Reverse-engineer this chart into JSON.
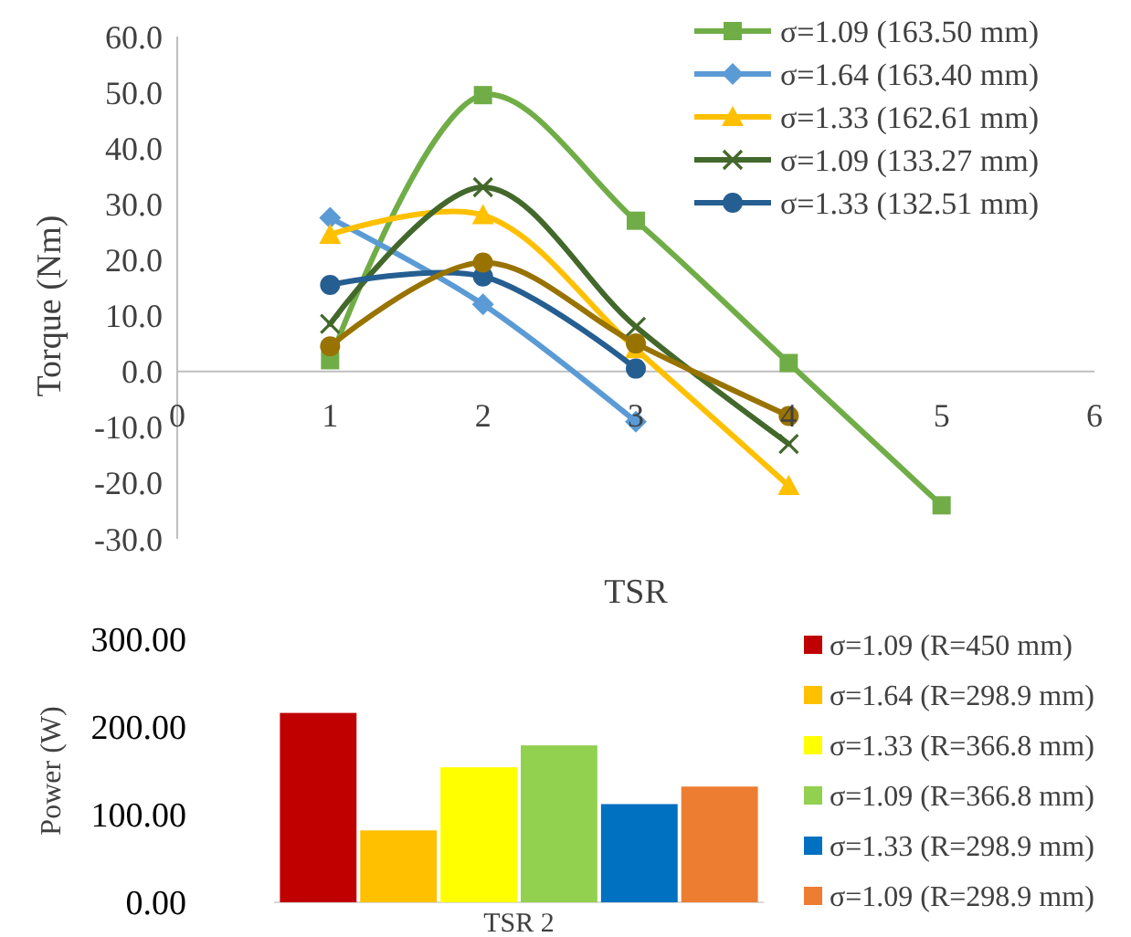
{
  "chart_data": [
    {
      "type": "line",
      "xlabel": "TSR",
      "ylabel": "Torque (Nm)",
      "xlim": [
        0,
        6
      ],
      "xticks": [
        0,
        1,
        2,
        3,
        4,
        5,
        6
      ],
      "ylim": [
        -30,
        60
      ],
      "yticks": [
        {
          "value": -30,
          "label": "-30.0"
        },
        {
          "value": -20,
          "label": "-20.0"
        },
        {
          "value": -10,
          "label": "-10.0"
        },
        {
          "value": 0,
          "label": "0.0"
        },
        {
          "value": 10,
          "label": "10.0"
        },
        {
          "value": 20,
          "label": "20.0"
        },
        {
          "value": 30,
          "label": "30.0"
        },
        {
          "value": 40,
          "label": "40.0"
        },
        {
          "value": 50,
          "label": "50.0"
        },
        {
          "value": 60,
          "label": "60.0"
        }
      ],
      "grid": false,
      "legend": "top right",
      "series": [
        {
          "name": "σ=1.09 (163.50 mm)",
          "color": "#70ad47",
          "marker": "square",
          "x": [
            1,
            2,
            3,
            4,
            5
          ],
          "values": [
            2,
            49.5,
            27,
            1.5,
            -24
          ]
        },
        {
          "name": "σ=1.64 (163.40 mm)",
          "color": "#5b9bd5",
          "marker": "diamond",
          "x": [
            1,
            2,
            3
          ],
          "values": [
            27.5,
            12,
            -9
          ]
        },
        {
          "name": "σ=1.33 (162.61 mm)",
          "color": "#ffc000",
          "marker": "triangle",
          "x": [
            1,
            2,
            3,
            4
          ],
          "values": [
            24.5,
            28,
            4,
            -20.5
          ]
        },
        {
          "name": "σ=1.09 (133.27 mm)",
          "color": "#43682b",
          "marker": "cross",
          "x": [
            1,
            2,
            3,
            4
          ],
          "values": [
            8.5,
            33,
            8,
            -13
          ]
        },
        {
          "name": "σ=1.33 (132.51 mm)",
          "color": "#255e91",
          "marker": "circle",
          "x": [
            1,
            2,
            3
          ],
          "values": [
            15.5,
            17,
            0.5
          ]
        },
        {
          "color": "#997300",
          "marker": "circle",
          "x": [
            1,
            2,
            3,
            4
          ],
          "values": [
            4.5,
            19.5,
            5,
            -8
          ]
        }
      ]
    },
    {
      "type": "bar",
      "ylabel": "Power (W)",
      "xlabel": "TSR 2",
      "categories": [
        null,
        null,
        null,
        null,
        null,
        null
      ],
      "ylim": [
        0,
        300
      ],
      "yticks": [
        {
          "value": 0,
          "label": "0.00"
        },
        {
          "value": 100,
          "label": "100.00"
        },
        {
          "value": 200,
          "label": "200.00"
        },
        {
          "value": 300,
          "label": "300.00"
        }
      ],
      "grid": false,
      "legend": "right",
      "series": [
        {
          "name": "σ=1.09 (R=450 mm)",
          "color": "#c00000",
          "values": [
            216,
            null,
            null,
            null,
            null,
            null
          ]
        },
        {
          "name": "σ=1.64 (R=298.9 mm)",
          "color": "#ffc000",
          "values": [
            null,
            82,
            null,
            null,
            null,
            null
          ]
        },
        {
          "name": "σ=1.33 (R=366.8 mm)",
          "color": "#ffff00",
          "values": [
            null,
            null,
            154,
            null,
            null,
            null
          ]
        },
        {
          "name": "σ=1.09 (R=366.8 mm)",
          "color": "#92d050",
          "values": [
            null,
            null,
            null,
            179,
            null,
            null
          ]
        },
        {
          "name": "σ=1.33 (R=298.9 mm)",
          "color": "#0070c0",
          "values": [
            null,
            null,
            null,
            null,
            112,
            null
          ]
        },
        {
          "name": "σ=1.09 (R=298.9 mm)",
          "color": "#ed7d31",
          "values": [
            null,
            null,
            null,
            null,
            null,
            132
          ]
        }
      ]
    }
  ]
}
